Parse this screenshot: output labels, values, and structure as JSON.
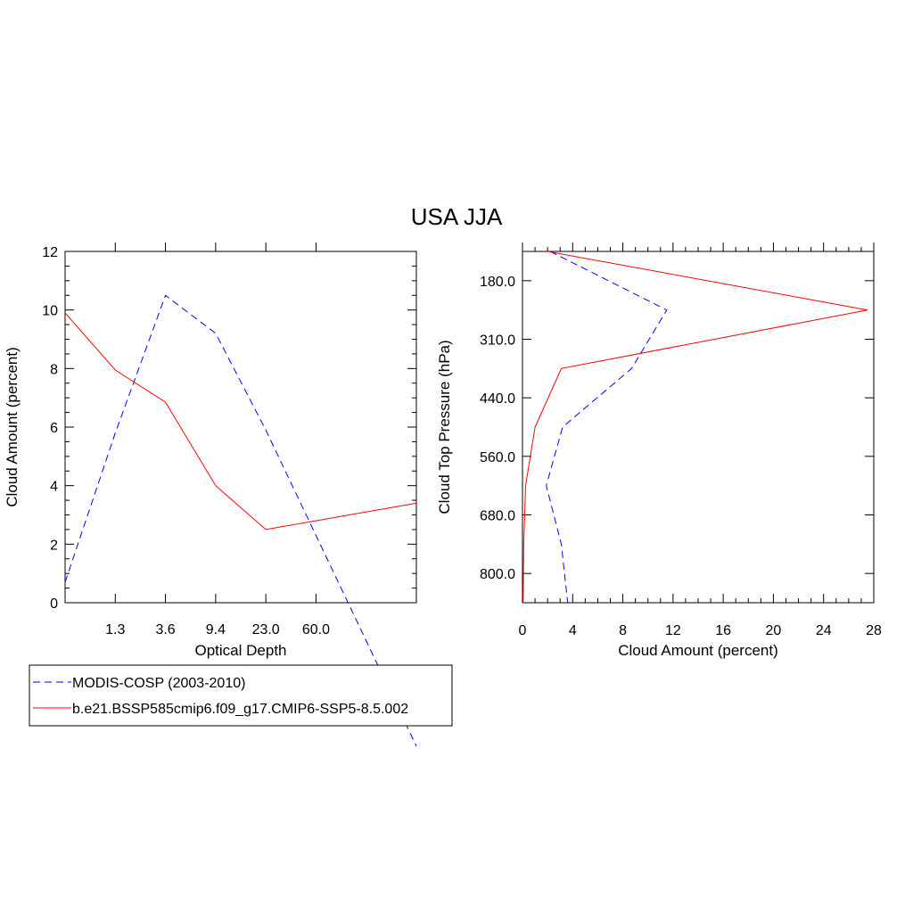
{
  "title": "USA JJA",
  "legend": {
    "entries": [
      {
        "label": "MODIS-COSP (2003-2010)",
        "color": "#0000ff",
        "style": "dashed"
      },
      {
        "label": "b.e21.BSSP585cmip6.f09_g17.CMIP6-SSP5-8.5.002",
        "color": "#ff0000",
        "style": "solid"
      }
    ]
  },
  "chart_data": [
    {
      "type": "line",
      "xlabel": "Optical Depth",
      "ylabel": "Cloud Amount (percent)",
      "ylim": [
        0,
        12
      ],
      "x_tick_labels": [
        "1.3",
        "3.6",
        "9.4",
        "23.0",
        "60.0"
      ],
      "y_tick_labels": [
        "0",
        "2",
        "4",
        "6",
        "8",
        "10",
        "12"
      ],
      "y_ticks": [
        0,
        2,
        4,
        6,
        8,
        10,
        12
      ],
      "x_bins": 7,
      "legend_placement": "below",
      "series": [
        {
          "name": "MODIS-COSP (2003-2010)",
          "color": "#0000ff",
          "style": "dashed",
          "values": [
            0.7,
            5.8,
            10.5,
            9.2,
            5.9,
            2.3
          ]
        },
        {
          "name": "b.e21.BSSP585cmip6.f09_g17.CMIP6-SSP5-8.5.002",
          "color": "#ff0000",
          "style": "solid",
          "values": [
            9.9,
            7.95,
            6.85,
            4.0,
            2.5,
            2.8
          ]
        }
      ]
    },
    {
      "type": "line",
      "xlabel": "Cloud Amount (percent)",
      "ylabel": "Cloud Top Pressure (hPa)",
      "xlim": [
        0,
        28
      ],
      "x_ticks": [
        0,
        4,
        8,
        12,
        16,
        20,
        24,
        28
      ],
      "x_tick_labels": [
        "0",
        "4",
        "8",
        "12",
        "16",
        "20",
        "24",
        "28"
      ],
      "y_tick_labels": [
        "180.0",
        "310.0",
        "440.0",
        "560.0",
        "680.0",
        "800.0"
      ],
      "y_bins": 12,
      "series": [
        {
          "name": "MODIS-COSP (2003-2010)",
          "color": "#0000ff",
          "style": "dashed",
          "values": [
            2.2,
            11.5,
            8.7,
            3.2,
            1.9,
            3.1,
            3.6
          ]
        },
        {
          "name": "b.e21.BSSP585cmip6.f09_g17.CMIP6-SSP5-8.5.002",
          "color": "#ff0000",
          "style": "solid",
          "values": [
            2.0,
            27.5,
            3.1,
            1.0,
            0.25,
            0.1,
            0.05
          ]
        }
      ]
    }
  ]
}
